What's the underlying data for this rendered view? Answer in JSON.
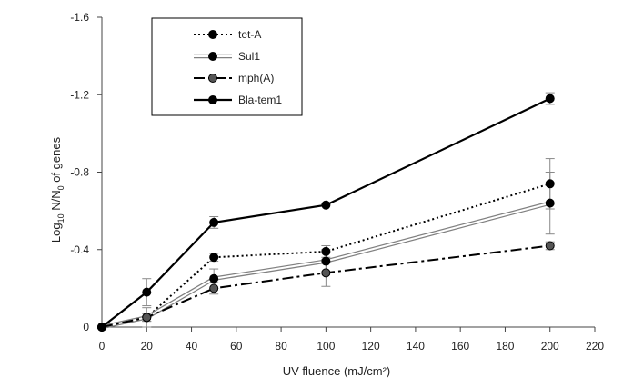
{
  "chart_data": {
    "type": "line",
    "title": "",
    "xlabel": "UV fluence (mJ/cm²)",
    "ylabel_parts": [
      "Log",
      "10",
      " N/N",
      "0",
      " of genes"
    ],
    "x": [
      0,
      20,
      50,
      100,
      200
    ],
    "xlim": [
      0,
      220
    ],
    "ylim": [
      0,
      -1.6
    ],
    "x_ticks": [
      0,
      20,
      40,
      60,
      80,
      100,
      120,
      140,
      160,
      180,
      200,
      220
    ],
    "x_tick_labels": [
      "0",
      "20",
      "40",
      "60",
      "80",
      "100",
      "120",
      "140",
      "160",
      "180",
      "200",
      "220"
    ],
    "y_ticks": [
      0,
      -0.4,
      -0.8,
      -1.2,
      -1.6
    ],
    "y_tick_labels": [
      "0",
      "-0.4",
      "-0.8",
      "-1.2",
      "-1.6"
    ],
    "grid": false,
    "legend_position": "top-left",
    "series": [
      {
        "name": "tet-A",
        "style": "dotted",
        "color": "#000000",
        "values": [
          0,
          -0.05,
          -0.36,
          -0.39,
          -0.74
        ],
        "errors": [
          0,
          0.02,
          0.02,
          0.03,
          0.13
        ]
      },
      {
        "name": "Sul1",
        "style": "double-dashed",
        "color": "#808080",
        "values": [
          0,
          -0.05,
          -0.25,
          -0.34,
          -0.64
        ],
        "errors": [
          0,
          0.05,
          0.05,
          0.06,
          0.16
        ]
      },
      {
        "name": "mph(A)",
        "style": "dash-dot",
        "color": "#000000",
        "values": [
          0,
          -0.05,
          -0.2,
          -0.28,
          -0.42
        ],
        "errors": [
          0,
          0.02,
          0.03,
          0.07,
          0.02
        ]
      },
      {
        "name": "Bla-tem1",
        "style": "solid",
        "color": "#000000",
        "values": [
          0,
          -0.18,
          -0.54,
          -0.63,
          -1.18
        ],
        "errors": [
          0,
          0.07,
          0.03,
          0,
          0.03
        ]
      }
    ]
  }
}
